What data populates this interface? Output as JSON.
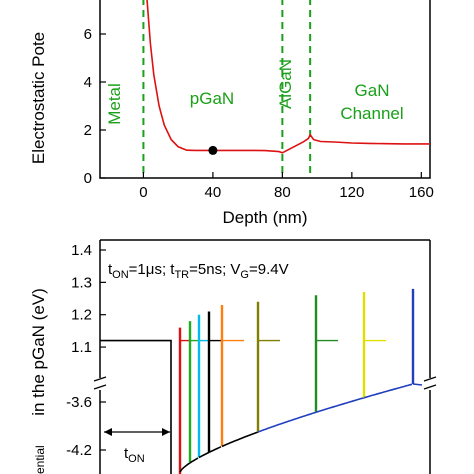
{
  "chart_data": [
    {
      "type": "line",
      "ylabel": "Electrostatic Pote",
      "xlabel": "Depth (nm)",
      "xlim": [
        -25,
        165
      ],
      "ylim": [
        0,
        7.5
      ],
      "xticks": [
        "0",
        "40",
        "80",
        "120",
        "160"
      ],
      "yticks": [
        "0",
        "2",
        "4",
        "6"
      ],
      "regions": [
        {
          "label": "Metal",
          "orientation": "vertical"
        },
        {
          "label": "pGaN",
          "orientation": "horizontal"
        },
        {
          "label": "AlGaN",
          "orientation": "vertical"
        },
        {
          "label": "GaN",
          "orientation": "horizontal"
        },
        {
          "label": "Channel",
          "orientation": "horizontal"
        }
      ],
      "boundaries_x": [
        0,
        80,
        96
      ],
      "series": [
        {
          "color": "#dd1111",
          "x": [
            2,
            4,
            6,
            9,
            12,
            16,
            20,
            25,
            30,
            40,
            50,
            60,
            70,
            78,
            80,
            84,
            88,
            92,
            95,
            96,
            98,
            102,
            110,
            120,
            130,
            140,
            150,
            160,
            165
          ],
          "y": [
            7.5,
            5.6,
            4.3,
            3.0,
            2.2,
            1.6,
            1.3,
            1.16,
            1.15,
            1.15,
            1.15,
            1.15,
            1.14,
            1.1,
            1.05,
            1.2,
            1.35,
            1.5,
            1.65,
            1.8,
            1.6,
            1.52,
            1.5,
            1.46,
            1.44,
            1.43,
            1.42,
            1.42,
            1.42
          ]
        }
      ],
      "marker": {
        "x": 40,
        "y": 1.15
      }
    },
    {
      "type": "line",
      "ylabel": "in the pGaN (eV)",
      "ylabel_fragment": "ential",
      "ylim_upper": [
        1.06,
        1.4
      ],
      "yticks_upper": [
        "1.4",
        "1.3",
        "1.2",
        "1.1"
      ],
      "yticks_lower": [
        "-3.6",
        "-4.2"
      ],
      "annotation": {
        "t": "t",
        "on": "ON",
        "eq1": "=1",
        "mu": "μ",
        "s": "s; t",
        "tr": "TR",
        "eq2": "=5ns; V",
        "g": "G",
        "eq3": "=9.4V"
      },
      "ton_label": {
        "t": "t",
        "sub": "ON"
      },
      "pulse_colors": [
        "#dd1111",
        "#22aa22",
        "#00bbee",
        "#000000",
        "#ff7f0e",
        "#808000",
        "#228b22",
        "#e0e000",
        "#1f3fbf"
      ],
      "pulse_peaks": [
        1.16,
        1.18,
        1.2,
        1.21,
        1.23,
        1.24,
        1.26,
        1.27,
        1.28
      ],
      "baseline": 1.12
    }
  ]
}
